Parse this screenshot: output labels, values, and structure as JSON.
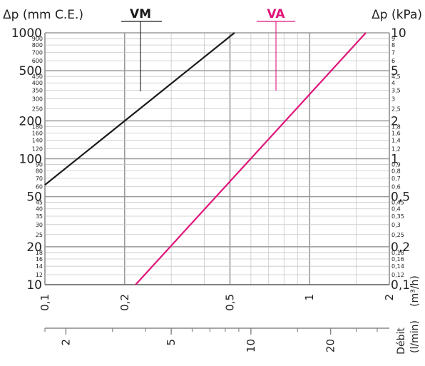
{
  "chart_data": {
    "type": "line",
    "title": "",
    "left_axis_title": "Δp (mm C.E.)",
    "right_axis_title": "Δp (kPa)",
    "flow_label": "Débit",
    "bottom_axis_unit": "(l/min)",
    "top_axis_unit": "(m³/h)",
    "x_scale": "log",
    "y_scale": "log",
    "xlim_m3h": [
      0.1,
      2
    ],
    "ylim_mmce": [
      10,
      1000
    ],
    "ylim_kpa": [
      0.1,
      10
    ],
    "grid": true,
    "series": [
      {
        "name": "VM",
        "color": "#1a1a1a",
        "x_m3h": [
          0.1,
          0.52
        ],
        "y_mmce": [
          62,
          1000
        ]
      },
      {
        "name": "VA",
        "color": "#e0157a",
        "x_m3h": [
          0.22,
          1.63
        ],
        "y_mmce": [
          10,
          1000
        ]
      }
    ],
    "left_ticks": {
      "major": [
        {
          "v": 1000,
          "label": "1000"
        },
        {
          "v": 500,
          "label": "500"
        },
        {
          "v": 200,
          "label": "200"
        },
        {
          "v": 100,
          "label": "100"
        },
        {
          "v": 50,
          "label": "50"
        },
        {
          "v": 20,
          "label": "20"
        },
        {
          "v": 10,
          "label": "10"
        }
      ],
      "minor": [
        {
          "v": 900,
          "label": "900"
        },
        {
          "v": 800,
          "label": "800"
        },
        {
          "v": 700,
          "label": "700"
        },
        {
          "v": 600,
          "label": "600"
        },
        {
          "v": 450,
          "label": "450"
        },
        {
          "v": 400,
          "label": "400"
        },
        {
          "v": 350,
          "label": "350"
        },
        {
          "v": 300,
          "label": "300"
        },
        {
          "v": 250,
          "label": "250"
        },
        {
          "v": 180,
          "label": "180"
        },
        {
          "v": 160,
          "label": "160"
        },
        {
          "v": 140,
          "label": "140"
        },
        {
          "v": 120,
          "label": "120"
        },
        {
          "v": 90,
          "label": "90"
        },
        {
          "v": 80,
          "label": "80"
        },
        {
          "v": 70,
          "label": "70"
        },
        {
          "v": 60,
          "label": "60"
        },
        {
          "v": 45,
          "label": "45"
        },
        {
          "v": 40,
          "label": "40"
        },
        {
          "v": 35,
          "label": "35"
        },
        {
          "v": 30,
          "label": "30"
        },
        {
          "v": 25,
          "label": "25"
        },
        {
          "v": 18,
          "label": "18"
        },
        {
          "v": 16,
          "label": "16"
        },
        {
          "v": 14,
          "label": "14"
        },
        {
          "v": 12,
          "label": "12"
        }
      ]
    },
    "right_ticks": {
      "major": [
        {
          "v": 10,
          "label": "10"
        },
        {
          "v": 5,
          "label": "5"
        },
        {
          "v": 2,
          "label": "2"
        },
        {
          "v": 1,
          "label": "1"
        },
        {
          "v": 0.5,
          "label": "0,5"
        },
        {
          "v": 0.2,
          "label": "0,2"
        },
        {
          "v": 0.1,
          "label": "0,1"
        }
      ],
      "minor": [
        {
          "v": 9,
          "label": "9"
        },
        {
          "v": 8,
          "label": "8"
        },
        {
          "v": 7,
          "label": "7"
        },
        {
          "v": 6,
          "label": "6"
        },
        {
          "v": 4.5,
          "label": "4,5"
        },
        {
          "v": 4,
          "label": "4"
        },
        {
          "v": 3.5,
          "label": "3,5"
        },
        {
          "v": 3,
          "label": "3"
        },
        {
          "v": 2.5,
          "label": "2,5"
        },
        {
          "v": 1.8,
          "label": "1,8"
        },
        {
          "v": 1.6,
          "label": "1,6"
        },
        {
          "v": 1.4,
          "label": "1,4"
        },
        {
          "v": 1.2,
          "label": "1,2"
        },
        {
          "v": 0.9,
          "label": "0,9"
        },
        {
          "v": 0.8,
          "label": "0,8"
        },
        {
          "v": 0.7,
          "label": "0,7"
        },
        {
          "v": 0.6,
          "label": "0,6"
        },
        {
          "v": 0.45,
          "label": "0,45"
        },
        {
          "v": 0.4,
          "label": "0,4"
        },
        {
          "v": 0.35,
          "label": "0,35"
        },
        {
          "v": 0.3,
          "label": "0,3"
        },
        {
          "v": 0.25,
          "label": "0,25"
        },
        {
          "v": 0.18,
          "label": "0,18"
        },
        {
          "v": 0.16,
          "label": "0,16"
        },
        {
          "v": 0.14,
          "label": "0,14"
        },
        {
          "v": 0.12,
          "label": "0,12"
        }
      ]
    },
    "bottom_ticks_m3h": [
      {
        "v": 0.1,
        "label": "0,1"
      },
      {
        "v": 0.2,
        "label": "0,2"
      },
      {
        "v": 0.5,
        "label": "0,5"
      },
      {
        "v": 1,
        "label": "1"
      },
      {
        "v": 2,
        "label": "2"
      }
    ],
    "flow_ticks_lmin": [
      {
        "v": 2,
        "label": "2"
      },
      {
        "v": 5,
        "label": "5"
      },
      {
        "v": 10,
        "label": "10"
      },
      {
        "v": 20,
        "label": "20"
      }
    ]
  }
}
